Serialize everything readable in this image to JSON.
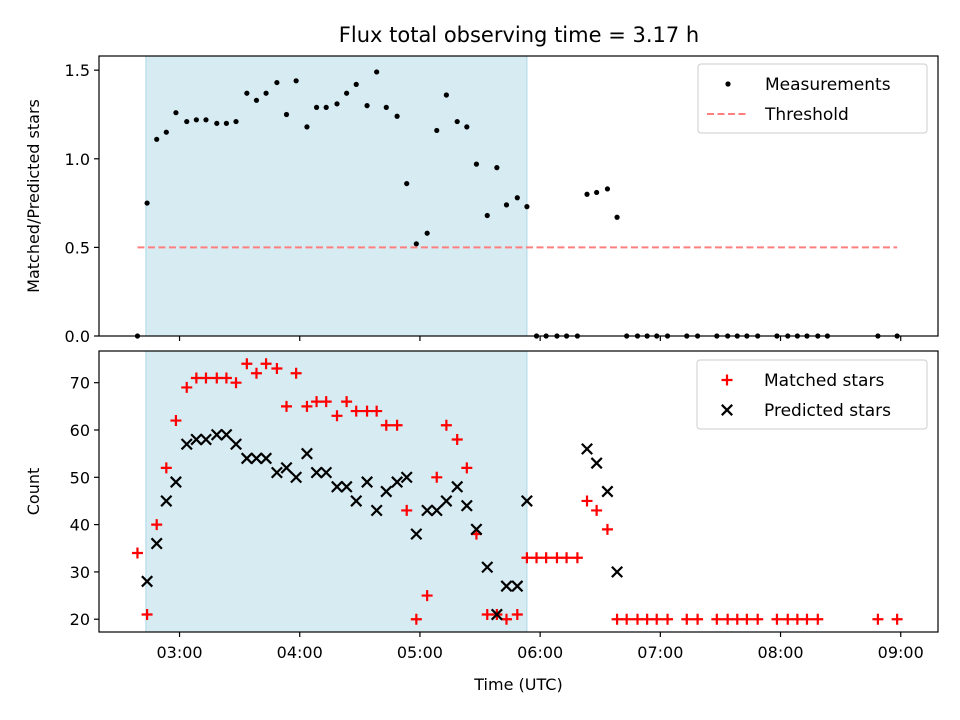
{
  "figure_title": "Flux total observing time = 3.17 h",
  "chart_data": [
    {
      "type": "scatter",
      "title": "Flux total observing time = 3.17 h",
      "xlabel": "",
      "ylabel": "Matched/Predicted stars",
      "x_unit": "hours UTC",
      "xlim": [
        2.33,
        9.31
      ],
      "ylim": [
        0,
        1.58
      ],
      "yticks": [
        0.0,
        0.5,
        1.0,
        1.5
      ],
      "ytick_labels": [
        "0.0",
        "0.5",
        "1.0",
        "1.5"
      ],
      "shaded_region": {
        "x": [
          2.72,
          5.89
        ],
        "color": "#add8e6"
      },
      "legend": {
        "position": "top-right",
        "entries": [
          "Measurements",
          "Threshold"
        ]
      },
      "series": [
        {
          "name": "Measurements",
          "marker": "dot",
          "color": "#000000",
          "points": [
            [
              2.65,
              0.0
            ],
            [
              2.73,
              0.75
            ],
            [
              2.81,
              1.11
            ],
            [
              2.89,
              1.15
            ],
            [
              2.97,
              1.26
            ],
            [
              3.06,
              1.21
            ],
            [
              3.14,
              1.22
            ],
            [
              3.22,
              1.22
            ],
            [
              3.31,
              1.2
            ],
            [
              3.39,
              1.2
            ],
            [
              3.47,
              1.21
            ],
            [
              3.56,
              1.37
            ],
            [
              3.64,
              1.33
            ],
            [
              3.72,
              1.37
            ],
            [
              3.81,
              1.43
            ],
            [
              3.89,
              1.25
            ],
            [
              3.97,
              1.44
            ],
            [
              4.06,
              1.18
            ],
            [
              4.14,
              1.29
            ],
            [
              4.22,
              1.29
            ],
            [
              4.31,
              1.31
            ],
            [
              4.39,
              1.37
            ],
            [
              4.47,
              1.42
            ],
            [
              4.56,
              1.3
            ],
            [
              4.64,
              1.49
            ],
            [
              4.72,
              1.29
            ],
            [
              4.81,
              1.24
            ],
            [
              4.89,
              0.86
            ],
            [
              4.97,
              0.52
            ],
            [
              5.06,
              0.58
            ],
            [
              5.14,
              1.16
            ],
            [
              5.22,
              1.36
            ],
            [
              5.31,
              1.21
            ],
            [
              5.39,
              1.18
            ],
            [
              5.47,
              0.97
            ],
            [
              5.56,
              0.68
            ],
            [
              5.64,
              0.95
            ],
            [
              5.72,
              0.74
            ],
            [
              5.81,
              0.78
            ],
            [
              5.89,
              0.73
            ],
            [
              5.97,
              0.0
            ],
            [
              6.05,
              0.0
            ],
            [
              6.14,
              0.0
            ],
            [
              6.22,
              0.0
            ],
            [
              6.31,
              0.0
            ],
            [
              6.39,
              0.8
            ],
            [
              6.47,
              0.81
            ],
            [
              6.56,
              0.83
            ],
            [
              6.64,
              0.67
            ],
            [
              6.72,
              0.0
            ],
            [
              6.81,
              0.0
            ],
            [
              6.89,
              0.0
            ],
            [
              6.97,
              0.0
            ],
            [
              7.06,
              0.0
            ],
            [
              7.22,
              0.0
            ],
            [
              7.31,
              0.0
            ],
            [
              7.47,
              0.0
            ],
            [
              7.56,
              0.0
            ],
            [
              7.64,
              0.0
            ],
            [
              7.72,
              0.0
            ],
            [
              7.81,
              0.0
            ],
            [
              7.97,
              0.0
            ],
            [
              8.06,
              0.0
            ],
            [
              8.14,
              0.0
            ],
            [
              8.22,
              0.0
            ],
            [
              8.31,
              0.0
            ],
            [
              8.39,
              0.0
            ],
            [
              8.81,
              0.0
            ],
            [
              8.97,
              0.0
            ]
          ]
        },
        {
          "name": "Threshold",
          "type": "line",
          "style": "dashed",
          "color": "#ff7f7f",
          "x": [
            2.65,
            8.97
          ],
          "y": [
            0.5,
            0.5
          ]
        }
      ]
    },
    {
      "type": "scatter",
      "xlabel": "Time (UTC)",
      "ylabel": "Count",
      "x_unit": "hours UTC",
      "xlim": [
        2.33,
        9.31
      ],
      "ylim": [
        17.3,
        76.7
      ],
      "xticks": [
        3,
        4,
        5,
        6,
        7,
        8,
        9
      ],
      "xtick_labels": [
        "03:00",
        "04:00",
        "05:00",
        "06:00",
        "07:00",
        "08:00",
        "09:00"
      ],
      "yticks": [
        20,
        30,
        40,
        50,
        60,
        70
      ],
      "ytick_labels": [
        "20",
        "30",
        "40",
        "50",
        "60",
        "70"
      ],
      "shaded_region": {
        "x": [
          2.72,
          5.89
        ],
        "color": "#add8e6"
      },
      "legend": {
        "position": "top-right",
        "entries": [
          "Matched stars",
          "Predicted stars"
        ]
      },
      "series": [
        {
          "name": "Matched stars",
          "marker": "plus",
          "color": "#ff0000",
          "points": [
            [
              2.65,
              34
            ],
            [
              2.73,
              21
            ],
            [
              2.81,
              40
            ],
            [
              2.89,
              52
            ],
            [
              2.97,
              62
            ],
            [
              3.06,
              69
            ],
            [
              3.14,
              71
            ],
            [
              3.22,
              71
            ],
            [
              3.31,
              71
            ],
            [
              3.39,
              71
            ],
            [
              3.47,
              70
            ],
            [
              3.56,
              74
            ],
            [
              3.64,
              72
            ],
            [
              3.72,
              74
            ],
            [
              3.81,
              73
            ],
            [
              3.89,
              65
            ],
            [
              3.97,
              72
            ],
            [
              4.06,
              65
            ],
            [
              4.14,
              66
            ],
            [
              4.22,
              66
            ],
            [
              4.31,
              63
            ],
            [
              4.39,
              66
            ],
            [
              4.47,
              64
            ],
            [
              4.56,
              64
            ],
            [
              4.64,
              64
            ],
            [
              4.72,
              61
            ],
            [
              4.81,
              61
            ],
            [
              4.89,
              43
            ],
            [
              4.97,
              20
            ],
            [
              5.06,
              25
            ],
            [
              5.14,
              50
            ],
            [
              5.22,
              61
            ],
            [
              5.31,
              58
            ],
            [
              5.39,
              52
            ],
            [
              5.47,
              38
            ],
            [
              5.56,
              21
            ],
            [
              5.64,
              21
            ],
            [
              5.72,
              20
            ],
            [
              5.81,
              21
            ],
            [
              5.89,
              33
            ],
            [
              5.97,
              33
            ],
            [
              6.05,
              33
            ],
            [
              6.14,
              33
            ],
            [
              6.22,
              33
            ],
            [
              6.31,
              33
            ],
            [
              6.39,
              45
            ],
            [
              6.47,
              43
            ],
            [
              6.56,
              39
            ],
            [
              6.64,
              20
            ],
            [
              6.72,
              20
            ],
            [
              6.81,
              20
            ],
            [
              6.89,
              20
            ],
            [
              6.97,
              20
            ],
            [
              7.06,
              20
            ],
            [
              7.22,
              20
            ],
            [
              7.31,
              20
            ],
            [
              7.47,
              20
            ],
            [
              7.56,
              20
            ],
            [
              7.64,
              20
            ],
            [
              7.72,
              20
            ],
            [
              7.81,
              20
            ],
            [
              7.97,
              20
            ],
            [
              8.06,
              20
            ],
            [
              8.14,
              20
            ],
            [
              8.22,
              20
            ],
            [
              8.31,
              20
            ],
            [
              8.81,
              20
            ],
            [
              8.97,
              20
            ]
          ]
        },
        {
          "name": "Predicted stars",
          "marker": "x",
          "color": "#000000",
          "points": [
            [
              2.73,
              28
            ],
            [
              2.81,
              36
            ],
            [
              2.89,
              45
            ],
            [
              2.97,
              49
            ],
            [
              3.06,
              57
            ],
            [
              3.14,
              58
            ],
            [
              3.22,
              58
            ],
            [
              3.31,
              59
            ],
            [
              3.39,
              59
            ],
            [
              3.47,
              57
            ],
            [
              3.56,
              54
            ],
            [
              3.64,
              54
            ],
            [
              3.72,
              54
            ],
            [
              3.81,
              51
            ],
            [
              3.89,
              52
            ],
            [
              3.97,
              50
            ],
            [
              4.06,
              55
            ],
            [
              4.14,
              51
            ],
            [
              4.22,
              51
            ],
            [
              4.31,
              48
            ],
            [
              4.39,
              48
            ],
            [
              4.47,
              45
            ],
            [
              4.56,
              49
            ],
            [
              4.64,
              43
            ],
            [
              4.72,
              47
            ],
            [
              4.81,
              49
            ],
            [
              4.89,
              50
            ],
            [
              4.97,
              38
            ],
            [
              5.06,
              43
            ],
            [
              5.14,
              43
            ],
            [
              5.22,
              45
            ],
            [
              5.31,
              48
            ],
            [
              5.39,
              44
            ],
            [
              5.47,
              39
            ],
            [
              5.56,
              31
            ],
            [
              5.64,
              21
            ],
            [
              5.72,
              27
            ],
            [
              5.81,
              27
            ],
            [
              5.89,
              45
            ],
            [
              6.39,
              56
            ],
            [
              6.47,
              53
            ],
            [
              6.56,
              47
            ],
            [
              6.64,
              30
            ]
          ]
        }
      ]
    }
  ]
}
